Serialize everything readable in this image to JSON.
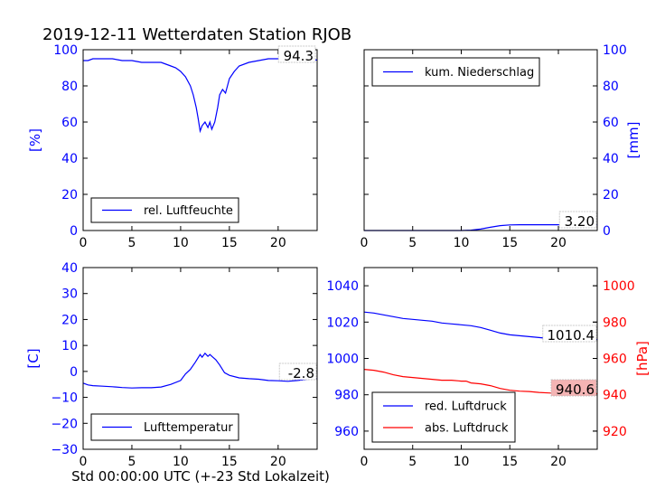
{
  "figure": {
    "title": "2019-12-11 Wetterdaten Station RJOB",
    "footer_xlabel": "Std 00:00:00 UTC (+-23 Std Lokalzeit)"
  },
  "colors": {
    "axis_blue": "#0000ff",
    "axis_red": "#ff0000",
    "highlight_box": "#f4b4b4"
  },
  "chart_data": [
    {
      "type": "line",
      "title": "",
      "xlabel": "",
      "ylabel": "[%]",
      "xlim": [
        0,
        24
      ],
      "ylim": [
        0,
        100
      ],
      "xticks": [
        0,
        5,
        10,
        15,
        20
      ],
      "yticks": [
        0,
        20,
        40,
        60,
        80,
        100
      ],
      "legend_placement": "lower-center",
      "annotation": "94.3",
      "series": [
        {
          "name": "rel. Luftfeuchte",
          "color": "#0000ff",
          "x": [
            0,
            0.5,
            1,
            2,
            3,
            4,
            5,
            6,
            7,
            8,
            8.5,
            9,
            9.5,
            10,
            10.5,
            11,
            11.3,
            11.6,
            11.8,
            12,
            12.2,
            12.5,
            12.8,
            13,
            13.2,
            13.5,
            13.8,
            14,
            14.3,
            14.6,
            15,
            15.5,
            16,
            17,
            18,
            19,
            20,
            20.5,
            21,
            22,
            23,
            24
          ],
          "y": [
            94,
            94,
            95,
            95,
            95,
            94,
            94,
            93,
            93,
            93,
            92,
            91,
            90,
            88,
            85,
            80,
            75,
            68,
            62,
            55,
            58,
            60,
            57,
            60,
            56,
            60,
            68,
            75,
            78,
            76,
            84,
            88,
            91,
            93,
            94,
            95,
            95,
            96,
            96,
            95,
            94.5,
            94.3
          ]
        }
      ]
    },
    {
      "type": "line",
      "title": "",
      "xlabel": "",
      "ylabel": "[mm]",
      "xlim": [
        0,
        24
      ],
      "ylim": [
        0,
        100
      ],
      "xticks": [
        0,
        5,
        10,
        15,
        20
      ],
      "yticks": [
        0,
        20,
        40,
        60,
        80,
        100
      ],
      "legend_placement": "upper-left",
      "annotation": "3.20",
      "series": [
        {
          "name": "kum. Niederschlag",
          "color": "#0000ff",
          "x": [
            0,
            5,
            10,
            11,
            12,
            13,
            14,
            15,
            16,
            18,
            20,
            22,
            24
          ],
          "y": [
            0,
            0,
            0,
            0.2,
            0.8,
            1.8,
            2.7,
            3.1,
            3.2,
            3.2,
            3.2,
            3.2,
            3.2
          ]
        }
      ]
    },
    {
      "type": "line",
      "title": "",
      "xlabel": "",
      "ylabel": "[C]",
      "xlim": [
        0,
        24
      ],
      "ylim": [
        -30,
        40
      ],
      "xticks": [
        0,
        5,
        10,
        15,
        20
      ],
      "yticks": [
        -30,
        -20,
        -10,
        0,
        10,
        20,
        30,
        40
      ],
      "legend_placement": "lower-center",
      "annotation": "-2.8",
      "series": [
        {
          "name": "Lufttemperatur",
          "color": "#0000ff",
          "x": [
            0,
            0.5,
            1,
            2,
            3,
            4,
            5,
            6,
            7,
            8,
            9,
            10,
            10.5,
            11,
            11.5,
            12,
            12.2,
            12.5,
            12.8,
            13,
            13.3,
            13.6,
            14,
            14.5,
            15,
            16,
            17,
            18,
            19,
            20,
            21,
            22,
            23,
            24
          ],
          "y": [
            -4.5,
            -5.2,
            -5.5,
            -5.7,
            -5.9,
            -6.2,
            -6.4,
            -6.3,
            -6.3,
            -6,
            -5,
            -3.5,
            -1,
            0.8,
            3.5,
            6.5,
            5.5,
            7,
            5.8,
            6.5,
            5.5,
            4.5,
            2.5,
            -0.5,
            -1.5,
            -2.5,
            -2.8,
            -3,
            -3.5,
            -3.6,
            -3.8,
            -3.5,
            -3,
            -2.8
          ]
        }
      ]
    },
    {
      "type": "line",
      "title": "",
      "xlabel": "",
      "ylabel": "",
      "ylabel_right": "[hPa]",
      "xlim": [
        0,
        24
      ],
      "ylim": [
        950,
        1050
      ],
      "ylim_right": [
        910,
        1010
      ],
      "xticks": [
        0,
        5,
        10,
        15,
        20
      ],
      "yticks": [
        960,
        980,
        1000,
        1020,
        1040
      ],
      "yticks_right": [
        920,
        940,
        960,
        980,
        1000
      ],
      "legend_placement": "lower-left",
      "annotations": [
        "1010.4",
        "940.6"
      ],
      "series": [
        {
          "name": "red. Luftdruck",
          "color": "#0000ff",
          "axis": "left",
          "x": [
            0,
            1,
            2,
            3,
            4,
            5,
            6,
            7,
            8,
            9,
            10,
            11,
            12,
            13,
            14,
            15,
            16,
            17,
            18,
            19,
            20,
            21,
            22,
            23,
            24
          ],
          "y": [
            1025.5,
            1025,
            1024,
            1023,
            1022,
            1021.5,
            1021,
            1020.5,
            1019.5,
            1019,
            1018.5,
            1018,
            1017,
            1015.5,
            1014,
            1013,
            1012.5,
            1012,
            1011.5,
            1011,
            1011,
            1010.8,
            1010.6,
            1010.5,
            1010.4
          ]
        },
        {
          "name": "abs. Luftdruck",
          "color": "#ff0000",
          "axis": "right",
          "x": [
            0,
            1,
            2,
            3,
            4,
            5,
            6,
            7,
            8,
            9,
            10,
            10.5,
            11,
            12,
            13,
            14,
            15,
            16,
            17,
            18,
            19,
            20,
            21,
            22,
            23,
            24
          ],
          "y": [
            954,
            953.5,
            952.5,
            951,
            950,
            949.5,
            949,
            948.5,
            948,
            948,
            947.5,
            947.5,
            946.5,
            946,
            945,
            943.5,
            942.5,
            942,
            941.8,
            941.3,
            941,
            940.8,
            940.7,
            940.7,
            940.6,
            940.6
          ]
        }
      ]
    }
  ]
}
